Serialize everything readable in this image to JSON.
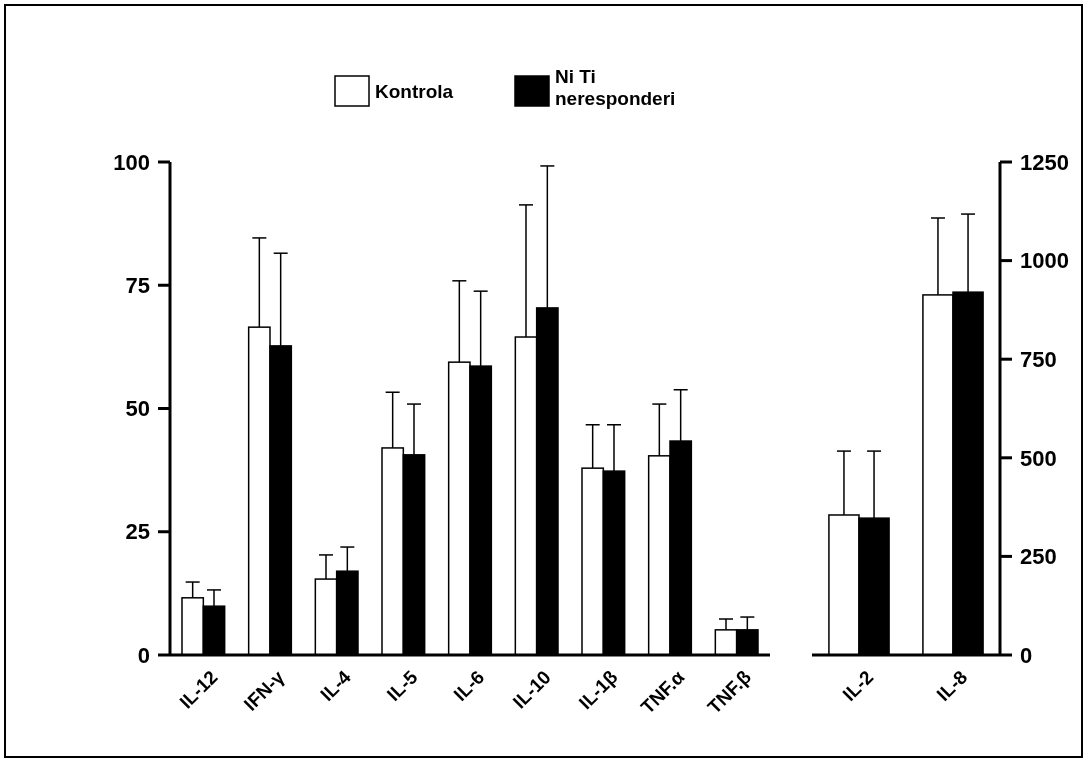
{
  "chart_data": [
    {
      "type": "bar",
      "categories": [
        "IL-12",
        "IFN-γ",
        "IL-4",
        "IL-5",
        "IL-6",
        "IL-10",
        "IL-1β",
        "TNF.α",
        "TNF.β"
      ],
      "ylim": [
        0,
        100
      ],
      "yticks": [
        0,
        25,
        50,
        75,
        100
      ],
      "legend": "top",
      "grid": false,
      "series": [
        {
          "name": "Kontrola",
          "color": "#ffffff",
          "values": [
            11.6,
            66.5,
            15.4,
            42,
            59.4,
            64.5,
            37.9,
            40.4,
            5.1
          ],
          "errors": [
            [
              11.6,
              14.8
            ],
            [
              66.5,
              84.6
            ],
            [
              15.4,
              20.3
            ],
            [
              42,
              53.3
            ],
            [
              59.4,
              75.9
            ],
            [
              64.5,
              91.3
            ],
            [
              37.9,
              46.7
            ],
            [
              40.4,
              50.9
            ],
            [
              5.1,
              7.3
            ]
          ]
        },
        {
          "name": "Ni Ti neresponderi",
          "color": "#000000",
          "values": [
            9.9,
            62.7,
            17,
            40.6,
            58.6,
            70.4,
            37.3,
            43.4,
            5.1
          ],
          "errors": [
            [
              9.9,
              13.2
            ],
            [
              62.7,
              81.5
            ],
            [
              17,
              21.9
            ],
            [
              40.6,
              50.9
            ],
            [
              58.6,
              73.8
            ],
            [
              70.4,
              99.2
            ],
            [
              37.3,
              46.7
            ],
            [
              43.4,
              53.8
            ],
            [
              5.1,
              7.7
            ]
          ]
        }
      ]
    },
    {
      "type": "bar",
      "categories": [
        "IL-2",
        "IL-8"
      ],
      "y2lim": [
        0,
        1250
      ],
      "y2ticks": [
        0,
        250,
        500,
        750,
        1000,
        1250
      ],
      "grid": false,
      "series": [
        {
          "color": "#ffffff",
          "axis": "y2",
          "values": [
            355,
            913
          ],
          "errors": [
            [
              355,
              517
            ],
            [
              913,
              1108
            ]
          ]
        },
        {
          "color": "#000000",
          "axis": "y2",
          "values": [
            347,
            920
          ],
          "errors": [
            [
              347,
              517
            ],
            [
              920,
              1118
            ]
          ]
        }
      ]
    }
  ]
}
